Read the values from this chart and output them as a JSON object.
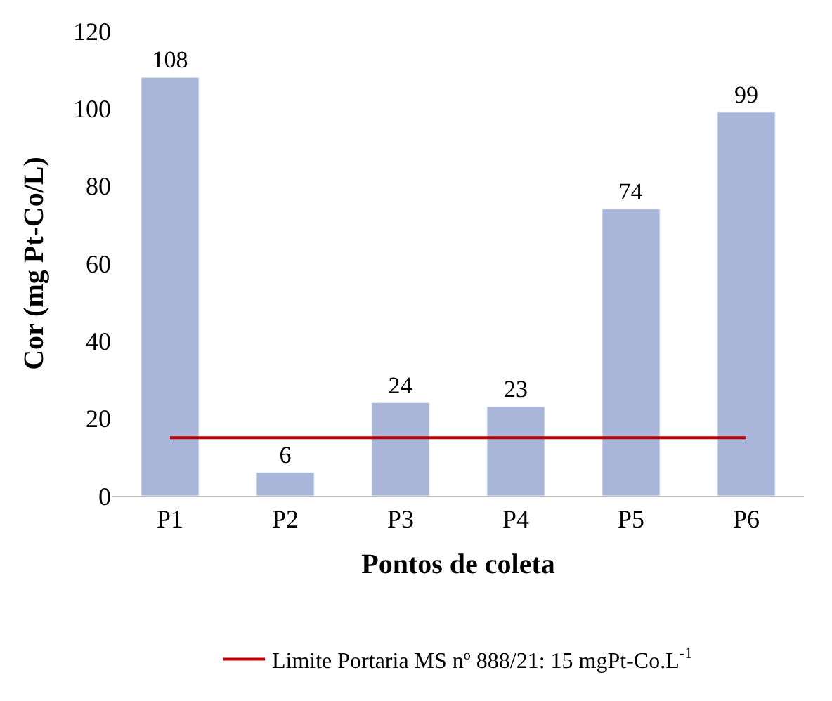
{
  "chart_data": {
    "type": "bar",
    "xlabel": "Pontos de coleta",
    "ylabel": "Cor (mg Pt-Co/L)",
    "categories": [
      "P1",
      "P2",
      "P3",
      "P4",
      "P5",
      "P6"
    ],
    "values": [
      108,
      6,
      24,
      23,
      74,
      99
    ],
    "color": "#a9b6d9",
    "ylim": [
      0,
      120
    ],
    "yticks": [
      0,
      20,
      40,
      60,
      80,
      100,
      120
    ],
    "grid": false,
    "data_labels": true,
    "legend": "bottom",
    "ref_lines": [
      {
        "axis": "y",
        "value": 15,
        "label": "Limite Portaria MS nº 888/21: 15 mgPt-Co.L$^{-1}$",
        "color": "#c00000",
        "line_style": "solid"
      }
    ]
  }
}
